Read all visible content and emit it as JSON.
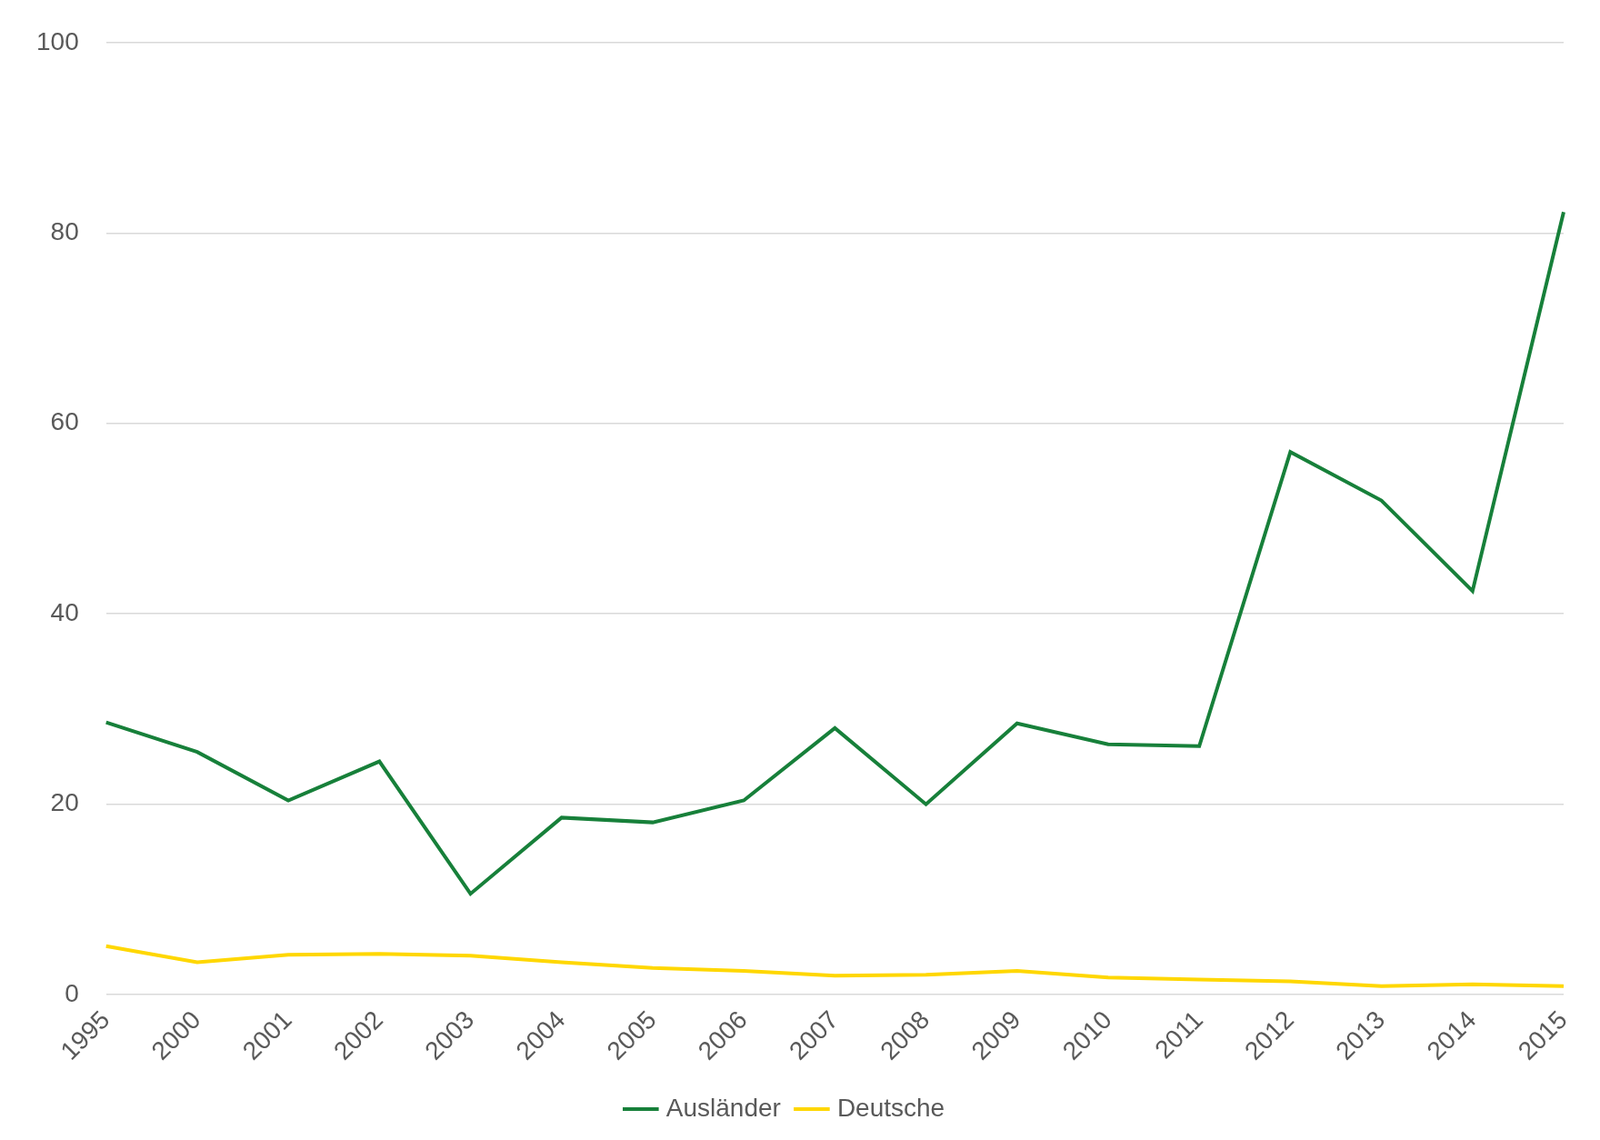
{
  "chart_data": {
    "type": "line",
    "categories": [
      "1995",
      "2000",
      "2001",
      "2002",
      "2003",
      "2004",
      "2005",
      "2006",
      "2007",
      "2008",
      "2009",
      "2010",
      "2011",
      "2012",
      "2013",
      "2014",
      "2015"
    ],
    "series": [
      {
        "name": "Ausländer",
        "color": "#17803a",
        "values": [
          28.6,
          25.5,
          20.4,
          24.5,
          10.6,
          18.6,
          18.1,
          20.4,
          28.0,
          20.0,
          28.5,
          26.3,
          26.1,
          57.0,
          51.9,
          42.4,
          82.2
        ]
      },
      {
        "name": "Deutsche",
        "color": "#ffd700",
        "values": [
          5.1,
          3.4,
          4.2,
          4.3,
          4.1,
          3.4,
          2.8,
          2.5,
          2.0,
          2.1,
          2.5,
          1.8,
          1.6,
          1.4,
          0.9,
          1.1,
          0.9
        ]
      }
    ],
    "ylim": [
      0,
      100
    ],
    "yticks": [
      0,
      20,
      40,
      60,
      80,
      100
    ],
    "grid": true,
    "legend": "bottom"
  }
}
